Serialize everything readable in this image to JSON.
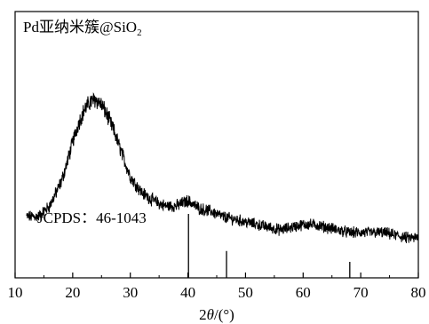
{
  "chart_data": {
    "type": "line",
    "title": "Pd亚纳米簇@SiO₂",
    "title_parts": {
      "main": "Pd亚纳米簇@SiO",
      "sub": "2"
    },
    "xlabel": {
      "prefix": "2",
      "symbol": "θ",
      "suffix": "/(°)"
    },
    "ylabel": "",
    "xlim": [
      10,
      80
    ],
    "x_ticks": [
      10,
      20,
      30,
      40,
      50,
      60,
      70,
      80
    ],
    "x_tick_labels": [
      "10",
      "20",
      "30",
      "40",
      "50",
      "60",
      "70",
      "80"
    ],
    "grid": false,
    "series": [
      {
        "x": [
          12,
          14,
          16,
          18,
          19,
          20,
          21,
          22,
          23,
          24,
          25,
          26,
          27,
          28,
          29,
          30,
          32,
          34,
          36,
          38,
          40,
          42,
          44,
          46,
          48,
          50,
          52,
          54,
          56,
          58,
          60,
          62,
          64,
          66,
          68,
          70,
          72,
          74,
          76,
          78,
          80
        ],
        "y": [
          0.23,
          0.23,
          0.27,
          0.36,
          0.43,
          0.51,
          0.58,
          0.63,
          0.66,
          0.67,
          0.65,
          0.61,
          0.56,
          0.5,
          0.44,
          0.38,
          0.32,
          0.29,
          0.27,
          0.27,
          0.29,
          0.26,
          0.25,
          0.23,
          0.22,
          0.21,
          0.2,
          0.19,
          0.18,
          0.19,
          0.2,
          0.2,
          0.19,
          0.18,
          0.17,
          0.17,
          0.17,
          0.17,
          0.16,
          0.15,
          0.15
        ]
      }
    ],
    "reference": {
      "label": "JCPDS：46-1043",
      "peaks": [
        {
          "x": 40.1,
          "intensity": 100
        },
        {
          "x": 46.7,
          "intensity": 42
        },
        {
          "x": 68.1,
          "intensity": 25
        }
      ]
    }
  }
}
